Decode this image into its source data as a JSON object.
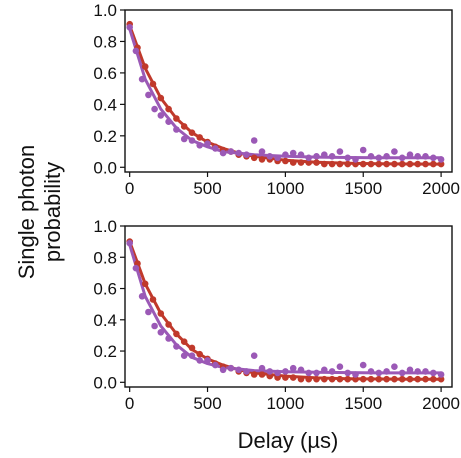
{
  "figure": {
    "ylabel_lines": [
      "Single photon",
      "probability"
    ],
    "xlabel": "Delay (µs)"
  },
  "colors": {
    "red": "#c0392b",
    "purple": "#9b59b6",
    "axis": "#111111"
  },
  "chart_data": [
    {
      "type": "scatter",
      "title": "",
      "xlim": [
        -30,
        2070
      ],
      "ylim": [
        -0.03,
        1.0
      ],
      "xticks": [
        0,
        500,
        1000,
        1500,
        2000
      ],
      "yticks": [
        0.0,
        0.2,
        0.4,
        0.6,
        0.8,
        1.0
      ],
      "xticklabels": [
        "0",
        "500",
        "1000",
        "1500",
        "2000"
      ],
      "yticklabels": [
        "0.0",
        "0.2",
        "0.4",
        "0.6",
        "0.8",
        "1.0"
      ],
      "series": [
        {
          "color": "red",
          "x": [
            0,
            50,
            100,
            150,
            200,
            250,
            300,
            350,
            400,
            450,
            500,
            550,
            600,
            650,
            700,
            750,
            800,
            850,
            900,
            950,
            1000,
            1050,
            1100,
            1150,
            1200,
            1250,
            1300,
            1350,
            1400,
            1450,
            1500,
            1550,
            1600,
            1650,
            1700,
            1750,
            1800,
            1850,
            1900,
            1950,
            2000
          ],
          "y": [
            0.91,
            0.76,
            0.64,
            0.53,
            0.44,
            0.37,
            0.31,
            0.26,
            0.22,
            0.19,
            0.16,
            0.13,
            0.11,
            0.1,
            0.08,
            0.07,
            0.06,
            0.05,
            0.05,
            0.04,
            0.04,
            0.03,
            0.03,
            0.03,
            0.03,
            0.02,
            0.02,
            0.02,
            0.02,
            0.02,
            0.02,
            0.02,
            0.02,
            0.02,
            0.02,
            0.02,
            0.02,
            0.02,
            0.02,
            0.02,
            0.02
          ],
          "fit": {
            "x": [
              0,
              100,
              200,
              300,
              400,
              500,
              600,
              700,
              800,
              1000,
              1200,
              1400,
              1600,
              1800,
              2000
            ],
            "y": [
              0.9,
              0.63,
              0.44,
              0.31,
              0.22,
              0.16,
              0.12,
              0.09,
              0.07,
              0.045,
              0.032,
              0.026,
              0.023,
              0.021,
              0.02
            ]
          }
        },
        {
          "color": "purple",
          "x": [
            0,
            40,
            80,
            120,
            160,
            200,
            250,
            300,
            350,
            400,
            450,
            500,
            550,
            600,
            650,
            700,
            750,
            800,
            850,
            900,
            950,
            1000,
            1050,
            1100,
            1150,
            1200,
            1250,
            1300,
            1350,
            1400,
            1450,
            1500,
            1550,
            1600,
            1650,
            1700,
            1750,
            1800,
            1850,
            1900,
            1950,
            2000
          ],
          "y": [
            0.89,
            0.74,
            0.56,
            0.46,
            0.37,
            0.33,
            0.29,
            0.24,
            0.18,
            0.17,
            0.14,
            0.15,
            0.12,
            0.09,
            0.1,
            0.09,
            0.08,
            0.17,
            0.1,
            0.07,
            0.06,
            0.08,
            0.09,
            0.08,
            0.06,
            0.07,
            0.08,
            0.07,
            0.1,
            0.06,
            0.05,
            0.11,
            0.07,
            0.06,
            0.07,
            0.1,
            0.06,
            0.08,
            0.07,
            0.07,
            0.06,
            0.05
          ],
          "fit": {
            "x": [
              0,
              100,
              200,
              300,
              400,
              500,
              600,
              700,
              800,
              1000,
              1200,
              1400,
              1600,
              1800,
              2000
            ],
            "y": [
              0.88,
              0.56,
              0.37,
              0.25,
              0.17,
              0.13,
              0.1,
              0.09,
              0.08,
              0.07,
              0.065,
              0.062,
              0.06,
              0.06,
              0.06
            ]
          }
        }
      ]
    },
    {
      "type": "scatter",
      "title": "",
      "xlim": [
        -30,
        2070
      ],
      "ylim": [
        -0.03,
        1.0
      ],
      "xticks": [
        0,
        500,
        1000,
        1500,
        2000
      ],
      "yticks": [
        0.0,
        0.2,
        0.4,
        0.6,
        0.8,
        1.0
      ],
      "xticklabels": [
        "0",
        "500",
        "1000",
        "1500",
        "2000"
      ],
      "yticklabels": [
        "0.0",
        "0.2",
        "0.4",
        "0.6",
        "0.8",
        "1.0"
      ],
      "series": [
        {
          "color": "red",
          "x": [
            0,
            50,
            100,
            150,
            200,
            250,
            300,
            350,
            400,
            450,
            500,
            550,
            600,
            650,
            700,
            750,
            800,
            850,
            900,
            950,
            1000,
            1050,
            1100,
            1150,
            1200,
            1250,
            1300,
            1350,
            1400,
            1450,
            1500,
            1550,
            1600,
            1650,
            1700,
            1750,
            1800,
            1850,
            1900,
            1950,
            2000
          ],
          "y": [
            0.9,
            0.76,
            0.63,
            0.53,
            0.44,
            0.37,
            0.31,
            0.26,
            0.22,
            0.18,
            0.15,
            0.12,
            0.1,
            0.09,
            0.07,
            0.06,
            0.05,
            0.05,
            0.04,
            0.03,
            0.03,
            0.03,
            0.02,
            0.02,
            0.02,
            0.02,
            0.02,
            0.02,
            0.02,
            0.02,
            0.02,
            0.02,
            0.02,
            0.02,
            0.02,
            0.02,
            0.02,
            0.02,
            0.02,
            0.02,
            0.02
          ],
          "fit": {
            "x": [
              0,
              100,
              200,
              300,
              400,
              500,
              600,
              700,
              800,
              1000,
              1200,
              1400,
              1600,
              1800,
              2000
            ],
            "y": [
              0.9,
              0.63,
              0.44,
              0.31,
              0.21,
              0.15,
              0.11,
              0.08,
              0.06,
              0.04,
              0.028,
              0.023,
              0.021,
              0.02,
              0.02
            ]
          }
        },
        {
          "color": "purple",
          "x": [
            0,
            40,
            80,
            120,
            160,
            200,
            250,
            300,
            350,
            400,
            450,
            500,
            550,
            600,
            650,
            700,
            750,
            800,
            850,
            900,
            950,
            1000,
            1050,
            1100,
            1150,
            1200,
            1250,
            1300,
            1350,
            1400,
            1450,
            1500,
            1550,
            1600,
            1650,
            1700,
            1750,
            1800,
            1850,
            1900,
            1950,
            2000
          ],
          "y": [
            0.89,
            0.73,
            0.55,
            0.45,
            0.36,
            0.32,
            0.28,
            0.23,
            0.17,
            0.17,
            0.14,
            0.14,
            0.11,
            0.08,
            0.09,
            0.08,
            0.07,
            0.17,
            0.09,
            0.07,
            0.06,
            0.07,
            0.09,
            0.08,
            0.06,
            0.06,
            0.08,
            0.07,
            0.1,
            0.06,
            0.05,
            0.11,
            0.07,
            0.06,
            0.07,
            0.1,
            0.06,
            0.08,
            0.07,
            0.07,
            0.06,
            0.05
          ],
          "fit": {
            "x": [
              0,
              100,
              200,
              300,
              400,
              500,
              600,
              700,
              800,
              1000,
              1200,
              1400,
              1600,
              1800,
              2000
            ],
            "y": [
              0.88,
              0.55,
              0.36,
              0.24,
              0.16,
              0.12,
              0.095,
              0.085,
              0.075,
              0.068,
              0.064,
              0.062,
              0.06,
              0.06,
              0.06
            ]
          }
        }
      ]
    }
  ]
}
